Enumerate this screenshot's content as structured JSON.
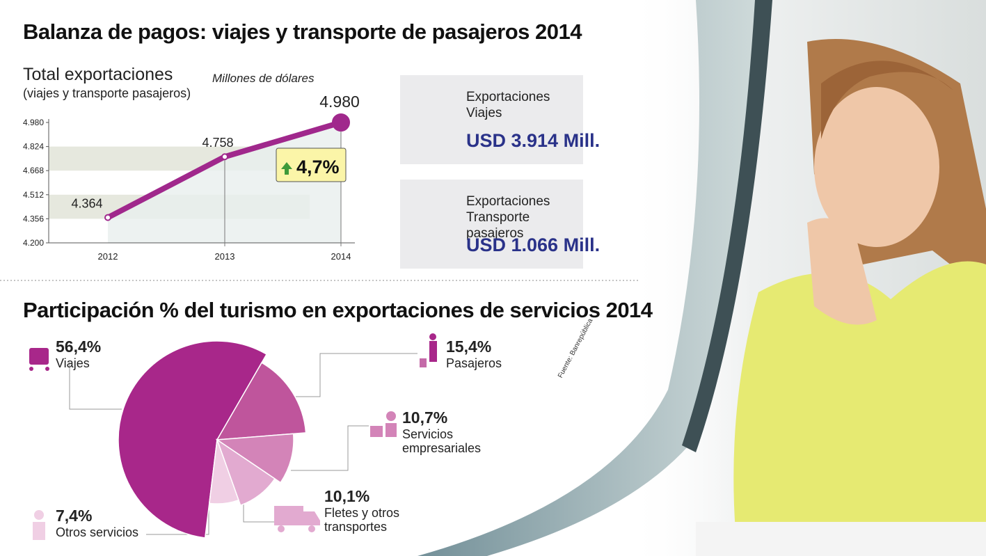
{
  "title": "Balanza de pagos: viajes y transporte de pasajeros 2014",
  "chart_data": [
    {
      "type": "line",
      "title": "Total exportaciones",
      "subtitle": "(viajes y transporte pasajeros)",
      "unit": "Millones de dólares",
      "categories": [
        "2012",
        "2013",
        "2014"
      ],
      "values": [
        4364,
        4758,
        4980
      ],
      "value_labels": [
        "4.364",
        "4.758",
        "4.980"
      ],
      "color": "#a0288c",
      "ylim": [
        4200,
        4980
      ],
      "yticks": [
        {
          "value": 4200,
          "label": "4.200"
        },
        {
          "value": 4356,
          "label": "4.356"
        },
        {
          "value": 4512,
          "label": "4.512"
        },
        {
          "value": 4668,
          "label": "4.668"
        },
        {
          "value": 4824,
          "label": "4.824"
        },
        {
          "value": 4980,
          "label": "4.980"
        }
      ],
      "annotation": "4,7%"
    },
    {
      "type": "pie",
      "title": "Participación % del turismo en exportaciones de servicios 2014",
      "categories": [
        "Viajes",
        "Pasajeros",
        "Servicios empresariales",
        "Fletes y otros transportes",
        "Otros servicios"
      ],
      "values": [
        56.4,
        15.4,
        10.7,
        10.1,
        7.4
      ],
      "value_labels": [
        "56,4%",
        "15,4%",
        "10,7%",
        "10,1%",
        "7,4%"
      ],
      "colors": [
        "#a8278a",
        "#bf559c",
        "#d384b8",
        "#e2aad0",
        "#f0cfe4"
      ]
    }
  ],
  "cards": [
    {
      "label": "Exportaciones Viajes",
      "value": "USD 3.914 Mill."
    },
    {
      "label": "Exportaciones Transporte pasajeros",
      "value": "USD 1.066 Mill."
    }
  ],
  "source": "Fuente: Banrepública"
}
